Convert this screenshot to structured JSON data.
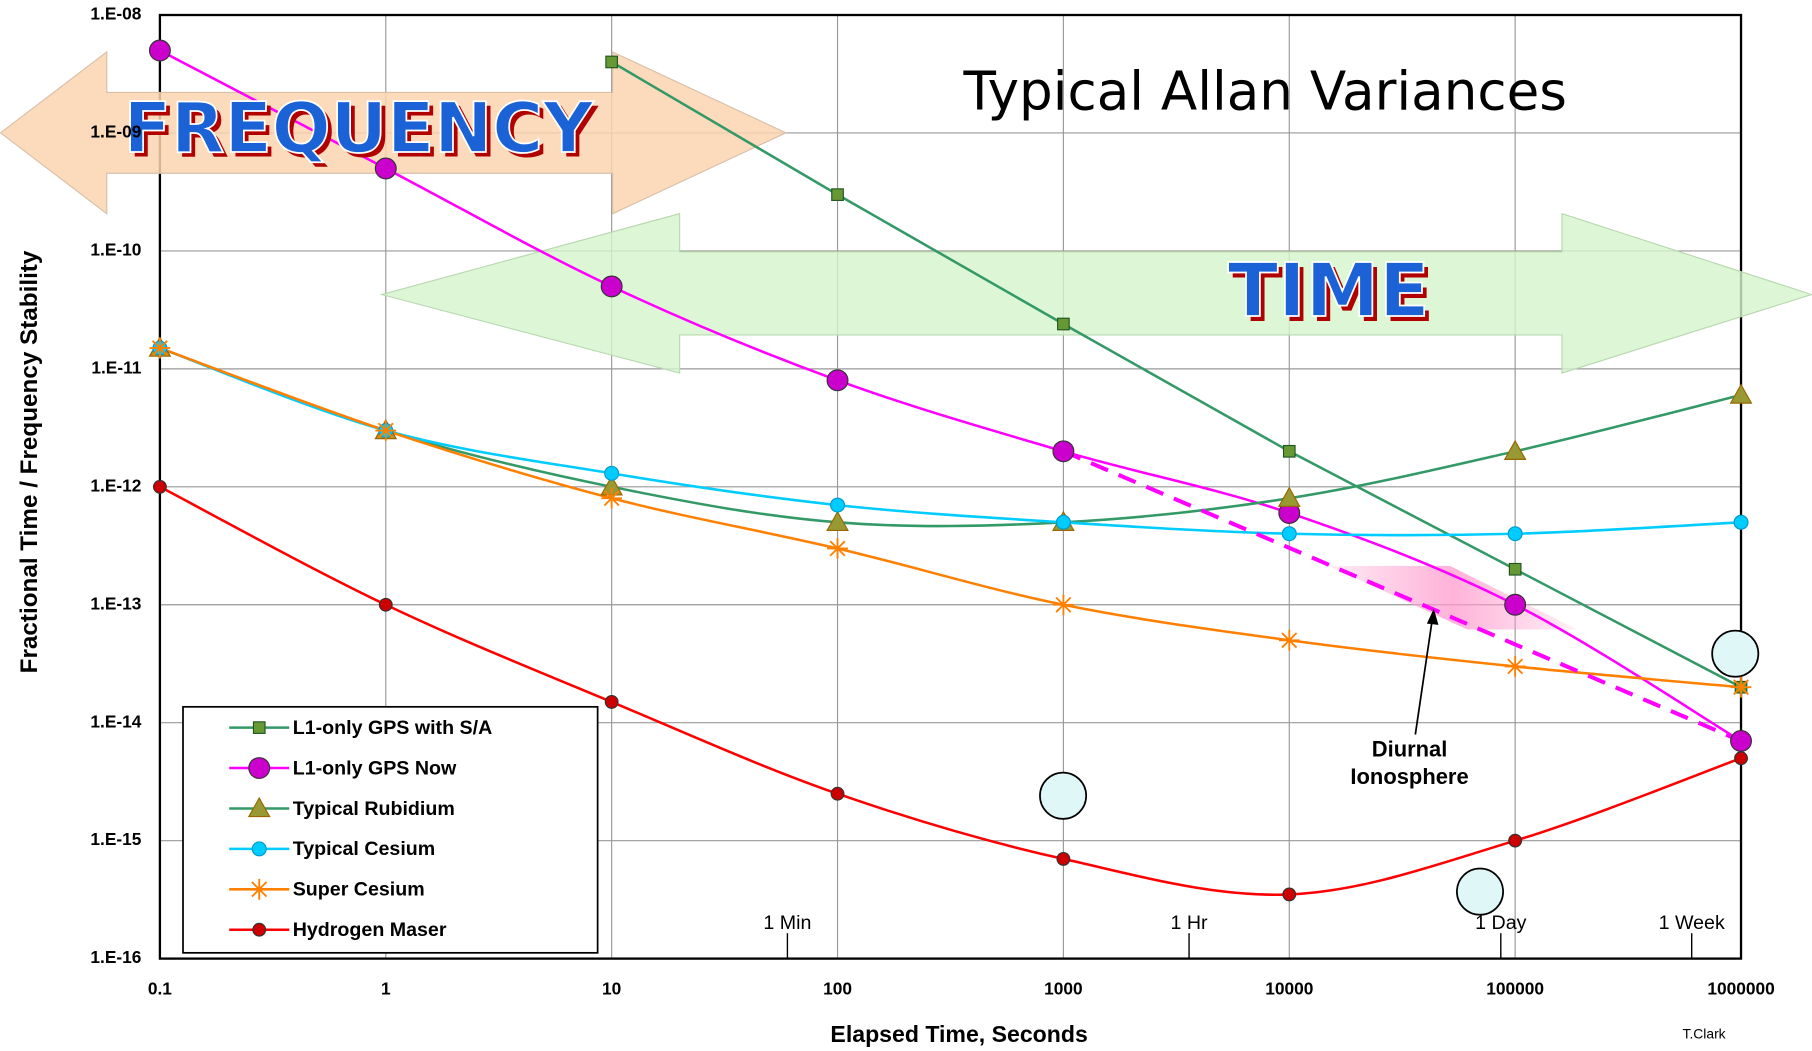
{
  "chart_data": {
    "type": "line",
    "title": "Typical Allan Variances",
    "xlabel": "Elapsed Time, Seconds",
    "ylabel": "Fractional Time / Frequency Stability",
    "credit": "T.Clark",
    "arrow_labels": {
      "frequency": "FREQUENCY",
      "time": "TIME"
    },
    "annotation": [
      "Diurnal",
      "Ionosphere"
    ],
    "x": [
      0.1,
      1,
      10,
      100,
      1000,
      10000,
      100000,
      1000000
    ],
    "xlim": [
      0.1,
      1000000
    ],
    "ylim": [
      1e-16,
      1e-08
    ],
    "xscale": "log",
    "yscale": "log",
    "grid": true,
    "xticks": [
      0.1,
      1,
      10,
      100,
      1000,
      10000,
      100000,
      1000000
    ],
    "yticks": [
      {
        "value": 1e-16,
        "label": "1.E-16"
      },
      {
        "value": 1e-15,
        "label": "1.E-15"
      },
      {
        "value": 1e-14,
        "label": "1.E-14"
      },
      {
        "value": 1e-13,
        "label": "1.E-13"
      },
      {
        "value": 1e-12,
        "label": "1.E-12"
      },
      {
        "value": 1e-11,
        "label": "1.E-11"
      },
      {
        "value": 1e-10,
        "label": "1.E-10"
      },
      {
        "value": 1e-09,
        "label": "1.E-09"
      },
      {
        "value": 1e-08,
        "label": "1.E-08"
      }
    ],
    "time_markers": [
      {
        "value": 60,
        "label": "1 Min"
      },
      {
        "value": 3600,
        "label": "1 Hr"
      },
      {
        "value": 86400,
        "label": "1 Day"
      },
      {
        "value": 604800,
        "label": "1 Week"
      }
    ],
    "series": [
      {
        "name": "L1-only GPS with S/A",
        "color": "#339966",
        "marker": "square",
        "marker_color": "#669933",
        "smooth": false,
        "values": [
          null,
          null,
          4e-09,
          3e-10,
          2.4e-11,
          2e-12,
          2e-13,
          2e-14
        ]
      },
      {
        "name": "L1-only GPS Now",
        "color": "#ff00ff",
        "marker": "circle",
        "marker_color": "#cc00cc",
        "smooth": true,
        "values": [
          5e-09,
          5e-10,
          5e-11,
          8e-12,
          2e-12,
          6e-13,
          1e-13,
          7e-15
        ]
      },
      {
        "name": "Typical Rubidium",
        "color": "#339966",
        "marker": "triangle",
        "marker_color": "#999933",
        "smooth": true,
        "values": [
          1.5e-11,
          3e-12,
          1e-12,
          5e-13,
          5e-13,
          8e-13,
          2e-12,
          6e-12
        ]
      },
      {
        "name": "Typical Cesium",
        "color": "#00ccff",
        "marker": "circle",
        "marker_color": "#00ccff",
        "smooth": true,
        "values": [
          1.5e-11,
          3e-12,
          1.3e-12,
          7e-13,
          5e-13,
          4e-13,
          4e-13,
          5e-13
        ]
      },
      {
        "name": "Super Cesium",
        "color": "#ff8000",
        "marker": "star",
        "marker_color": "#ff8000",
        "smooth": true,
        "values": [
          1.5e-11,
          3e-12,
          8e-13,
          3e-13,
          1e-13,
          5e-14,
          3e-14,
          2e-14
        ]
      },
      {
        "name": "Hydrogen Maser",
        "color": "#ff0000",
        "marker": "circle",
        "marker_color": "#cc0000",
        "smooth": true,
        "values": [
          1e-12,
          1e-13,
          1.5e-14,
          2.5e-15,
          7e-16,
          3.5e-16,
          1e-15,
          5e-15
        ]
      }
    ],
    "dashed_line": {
      "color": "#ff00ff",
      "x": [
        1000,
        1000000
      ],
      "values": [
        2e-12,
        7e-15
      ]
    }
  }
}
